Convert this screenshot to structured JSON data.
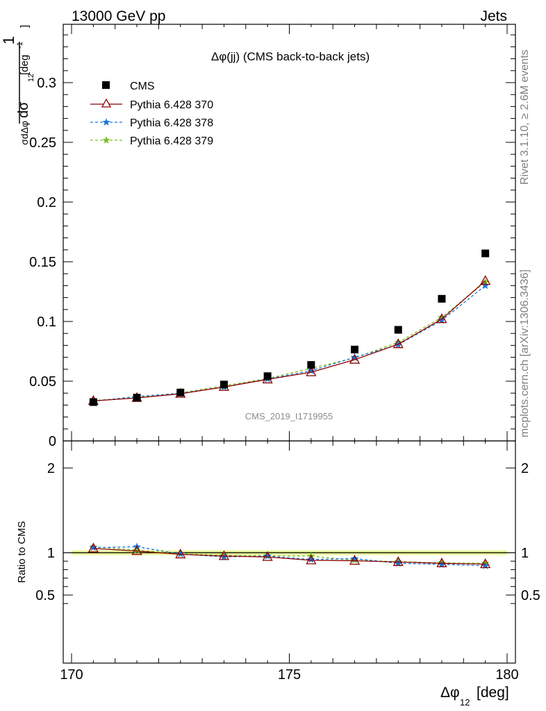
{
  "header": {
    "left": "13000 GeV pp",
    "right": "Jets"
  },
  "side_labels": {
    "rivet": "Rivet 3.1.10, ≥ 2.6M events",
    "mcplots": "mcplots.cern.ch [arXiv:1306.3436]"
  },
  "chart_data": [
    {
      "type": "line",
      "title": "Δφ(jj) (CMS back-to-back jets)",
      "watermark": "CMS_2019_I1719955",
      "ylabel": "1/σ dσ/dΔφ12 [deg-1]",
      "xlabel": "Δφ12 [deg]",
      "xlim": [
        170,
        180
      ],
      "ylim": [
        0,
        0.35
      ],
      "x_ticks": [
        "170",
        "175",
        "180"
      ],
      "y_ticks": [
        "0",
        "0.05",
        "0.1",
        "0.15",
        "0.2",
        "0.25",
        "0.3"
      ],
      "legend_position": "top-left",
      "x": [
        170.5,
        171.5,
        172.5,
        173.5,
        174.5,
        175.5,
        176.5,
        177.5,
        178.5,
        179.5
      ],
      "series": [
        {
          "name": "CMS",
          "marker": "square",
          "color": "#000000",
          "line": "none",
          "values": [
            0.0325,
            0.0362,
            0.0405,
            0.0472,
            0.0542,
            0.0636,
            0.0765,
            0.093,
            0.119,
            0.157
          ]
        },
        {
          "name": "Pythia 6.428 370",
          "marker": "triangle-open",
          "color": "#8b0000",
          "line": "solid",
          "values": [
            0.0335,
            0.036,
            0.0395,
            0.0452,
            0.0515,
            0.0575,
            0.068,
            0.081,
            0.102,
            0.134
          ]
        },
        {
          "name": "Pythia 6.428 378",
          "marker": "star",
          "color": "#1c75d8",
          "line": "dashed",
          "values": [
            0.0332,
            0.0372,
            0.0398,
            0.045,
            0.0518,
            0.0588,
            0.07,
            0.0805,
            0.101,
            0.13
          ]
        },
        {
          "name": "Pythia 6.428 379",
          "marker": "star",
          "color": "#7ac023",
          "line": "dashed",
          "values": [
            0.0338,
            0.0362,
            0.0402,
            0.0462,
            0.0522,
            0.0608,
            0.0695,
            0.0825,
            0.1035,
            0.133
          ]
        }
      ]
    },
    {
      "type": "line",
      "ylabel": "Ratio to CMS",
      "xlabel": "Δφ12 [deg]",
      "xlim": [
        170,
        180
      ],
      "ylim": [
        0.35,
        2.3
      ],
      "y_ticks": [
        "0.5",
        "1",
        "2"
      ],
      "x": [
        170.5,
        171.5,
        172.5,
        173.5,
        174.5,
        175.5,
        176.5,
        177.5,
        178.5,
        179.5
      ],
      "reference_band": {
        "center": 1.0,
        "inner": 0.01,
        "outer": 0.03
      },
      "series": [
        {
          "name": "Pythia 6.428 370",
          "values": [
            1.05,
            1.02,
            0.98,
            0.96,
            0.95,
            0.91,
            0.905,
            0.89,
            0.875,
            0.865
          ]
        },
        {
          "name": "Pythia 6.428 378",
          "values": [
            1.06,
            1.07,
            0.985,
            0.95,
            0.96,
            0.92,
            0.93,
            0.875,
            0.862,
            0.845
          ]
        },
        {
          "name": "Pythia 6.428 379",
          "values": [
            1.07,
            1.03,
            0.985,
            0.97,
            0.965,
            0.96,
            0.91,
            0.895,
            0.88,
            0.875
          ]
        }
      ]
    }
  ]
}
